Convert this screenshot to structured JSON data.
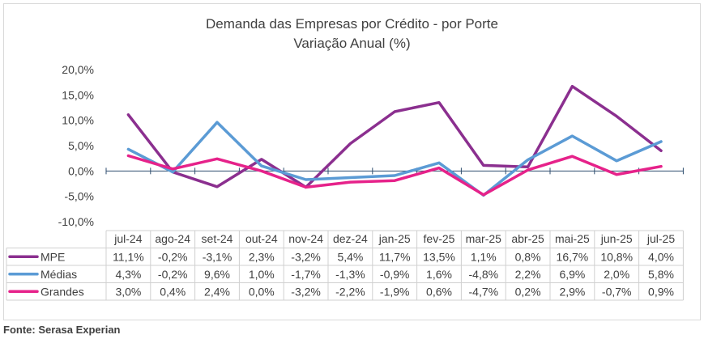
{
  "chart_data": {
    "type": "line",
    "title": "Demanda das Empresas por Crédito - por Porte",
    "subtitle": "Variação Anual (%)",
    "categories": [
      "jul-24",
      "ago-24",
      "set-24",
      "out-24",
      "nov-24",
      "dez-24",
      "jan-25",
      "fev-25",
      "mar-25",
      "abr-25",
      "mai-25",
      "jun-25",
      "jul-25"
    ],
    "series": [
      {
        "name": "MPE",
        "color": "#8b2f8f",
        "values": [
          11.1,
          -0.2,
          -3.1,
          2.3,
          -3.2,
          5.4,
          11.7,
          13.5,
          1.1,
          0.8,
          16.7,
          10.8,
          4.0
        ],
        "labels": [
          "11,1%",
          "-0,2%",
          "-3,1%",
          "2,3%",
          "-3,2%",
          "5,4%",
          "11,7%",
          "13,5%",
          "1,1%",
          "0,8%",
          "16,7%",
          "10,8%",
          "4,0%"
        ]
      },
      {
        "name": "Médias",
        "color": "#5b9bd5",
        "values": [
          4.3,
          -0.2,
          9.6,
          1.0,
          -1.7,
          -1.3,
          -0.9,
          1.6,
          -4.8,
          2.2,
          6.9,
          2.0,
          5.8
        ],
        "labels": [
          "4,3%",
          "-0,2%",
          "9,6%",
          "1,0%",
          "-1,7%",
          "-1,3%",
          "-0,9%",
          "1,6%",
          "-4,8%",
          "2,2%",
          "6,9%",
          "2,0%",
          "5,8%"
        ]
      },
      {
        "name": "Grandes",
        "color": "#e6228a",
        "values": [
          3.0,
          0.4,
          2.4,
          0.0,
          -3.2,
          -2.2,
          -1.9,
          0.6,
          -4.7,
          0.2,
          2.9,
          -0.7,
          0.9
        ],
        "labels": [
          "3,0%",
          "0,4%",
          "2,4%",
          "0,0%",
          "-3,2%",
          "-2,2%",
          "-1,9%",
          "0,6%",
          "-4,7%",
          "0,2%",
          "2,9%",
          "-0,7%",
          "0,9%"
        ]
      }
    ],
    "yticks": [
      "20,0%",
      "15,0%",
      "10,0%",
      "5,0%",
      "0,0%",
      "-5,0%",
      "-10,0%"
    ],
    "ylim": [
      -10,
      20
    ],
    "legend": "data-table",
    "grid": false
  },
  "source": "Fonte: Serasa Experian"
}
